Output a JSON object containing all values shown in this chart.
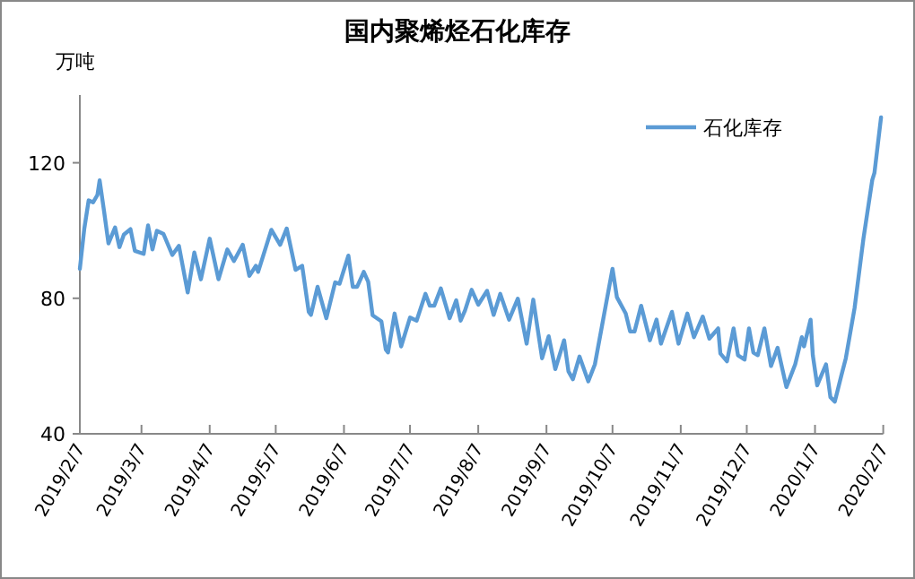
{
  "chart_data": {
    "type": "line",
    "title": "国内聚烯烃石化库存",
    "ylabel": "万吨",
    "x": [
      "2019-02-07",
      "2019-02-09",
      "2019-02-11",
      "2019-02-13",
      "2019-02-15",
      "2019-02-16",
      "2019-02-18",
      "2019-02-20",
      "2019-02-23",
      "2019-02-25",
      "2019-02-27",
      "2019-03-02",
      "2019-03-04",
      "2019-03-08",
      "2019-03-10",
      "2019-03-12",
      "2019-03-14",
      "2019-03-17",
      "2019-03-21",
      "2019-03-24",
      "2019-03-28",
      "2019-03-31",
      "2019-04-03",
      "2019-04-07",
      "2019-04-11",
      "2019-04-15",
      "2019-04-18",
      "2019-04-22",
      "2019-04-25",
      "2019-04-28",
      "2019-04-29",
      "2019-05-05",
      "2019-05-09",
      "2019-05-12",
      "2019-05-16",
      "2019-05-19",
      "2019-05-22",
      "2019-05-23",
      "2019-05-26",
      "2019-05-30",
      "2019-06-03",
      "2019-06-05",
      "2019-06-09",
      "2019-06-11",
      "2019-06-13",
      "2019-06-16",
      "2019-06-18",
      "2019-06-20",
      "2019-06-24",
      "2019-06-26",
      "2019-06-27",
      "2019-06-30",
      "2019-07-03",
      "2019-07-07",
      "2019-07-10",
      "2019-07-14",
      "2019-07-16",
      "2019-07-18",
      "2019-07-21",
      "2019-07-25",
      "2019-07-28",
      "2019-07-30",
      "2019-08-01",
      "2019-08-04",
      "2019-08-07",
      "2019-08-11",
      "2019-08-14",
      "2019-08-17",
      "2019-08-21",
      "2019-08-25",
      "2019-08-29",
      "2019-09-01",
      "2019-09-05",
      "2019-09-08",
      "2019-09-11",
      "2019-09-15",
      "2019-09-17",
      "2019-09-19",
      "2019-09-22",
      "2019-09-26",
      "2019-09-29",
      "2019-10-07",
      "2019-10-09",
      "2019-10-13",
      "2019-10-15",
      "2019-10-17",
      "2019-10-20",
      "2019-10-24",
      "2019-10-27",
      "2019-10-29",
      "2019-11-03",
      "2019-11-06",
      "2019-11-10",
      "2019-11-13",
      "2019-11-17",
      "2019-11-20",
      "2019-11-24",
      "2019-11-25",
      "2019-11-28",
      "2019-12-01",
      "2019-12-03",
      "2019-12-06",
      "2019-12-08",
      "2019-12-10",
      "2019-12-12",
      "2019-12-15",
      "2019-12-18",
      "2019-12-21",
      "2019-12-25",
      "2019-12-29",
      "2020-01-01",
      "2020-01-02",
      "2020-01-05",
      "2020-01-06",
      "2020-01-08",
      "2020-01-12",
      "2020-01-14",
      "2020-01-16",
      "2020-01-19",
      "2020-01-21",
      "2020-01-25",
      "2020-01-29",
      "2020-02-02",
      "2020-02-03",
      "2020-02-06"
    ],
    "series": [
      {
        "name": "石化库存",
        "color": "#5b9bd5",
        "values": [
          88.7,
          100.4,
          108.9,
          108.3,
          110.5,
          114.8,
          105.7,
          96.2,
          100.9,
          95.1,
          98.8,
          100.4,
          94.0,
          93.1,
          101.5,
          94.4,
          99.9,
          99.0,
          92.8,
          95.5,
          81.7,
          93.5,
          85.6,
          97.6,
          85.6,
          94.4,
          91.0,
          95.8,
          86.6,
          89.6,
          87.8,
          100.2,
          95.8,
          100.6,
          88.4,
          89.6,
          76.0,
          75.1,
          83.4,
          74.1,
          84.7,
          84.3,
          92.6,
          83.4,
          83.4,
          87.8,
          84.9,
          75.0,
          73.2,
          64.9,
          64.0,
          75.5,
          65.8,
          74.3,
          73.4,
          81.3,
          77.8,
          77.8,
          82.9,
          74.1,
          79.4,
          73.4,
          76.4,
          82.5,
          78.1,
          82.2,
          75.1,
          81.3,
          73.7,
          79.9,
          66.6,
          79.6,
          62.3,
          68.8,
          59.1,
          67.6,
          58.4,
          56.1,
          62.8,
          55.5,
          60.5,
          88.7,
          80.3,
          75.5,
          70.2,
          70.2,
          77.8,
          67.6,
          73.7,
          66.6,
          76.0,
          66.6,
          75.5,
          68.5,
          74.6,
          68.1,
          71.1,
          63.7,
          61.4,
          71.1,
          63.2,
          61.9,
          71.1,
          64.0,
          63.2,
          71.1,
          60.0,
          65.4,
          53.8,
          60.5,
          68.5,
          65.8,
          73.7,
          63.2,
          54.3,
          60.5,
          50.8,
          49.5,
          57.3,
          62.3,
          77.2,
          97.6,
          114.9,
          117.0,
          133.4
        ]
      }
    ],
    "ylim": [
      40,
      140
    ],
    "yticks": [
      40,
      80,
      120
    ],
    "xlim": [
      "2019-02-07",
      "2020-02-07"
    ],
    "xticks": [
      {
        "value": "2019-02-07",
        "label": "2019/2/7"
      },
      {
        "value": "2019-03-07",
        "label": "2019/3/7"
      },
      {
        "value": "2019-04-07",
        "label": "2019/4/7"
      },
      {
        "value": "2019-05-07",
        "label": "2019/5/7"
      },
      {
        "value": "2019-06-07",
        "label": "2019/6/7"
      },
      {
        "value": "2019-07-07",
        "label": "2019/7/7"
      },
      {
        "value": "2019-08-07",
        "label": "2019/8/7"
      },
      {
        "value": "2019-09-07",
        "label": "2019/9/7"
      },
      {
        "value": "2019-10-07",
        "label": "2019/10/7"
      },
      {
        "value": "2019-11-07",
        "label": "2019/11/7"
      },
      {
        "value": "2019-12-07",
        "label": "2019/12/7"
      },
      {
        "value": "2020-01-07",
        "label": "2020/1/7"
      },
      {
        "value": "2020-02-07",
        "label": "2020/2/7"
      }
    ],
    "grid": false,
    "legend": "top right",
    "marker": "none",
    "line_style": "solid"
  }
}
